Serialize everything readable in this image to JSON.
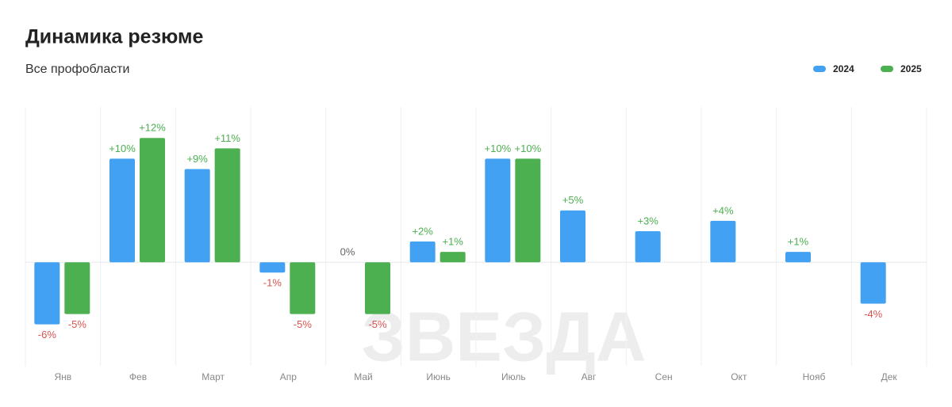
{
  "chart_data": {
    "type": "bar",
    "title": "Динамика резюме",
    "subtitle": "Все профобласти",
    "watermark": "ЗВЕЗДА",
    "categories": [
      "Янв",
      "Фев",
      "Март",
      "Апр",
      "Май",
      "Июнь",
      "Июль",
      "Авг",
      "Сен",
      "Окт",
      "Нояб",
      "Дек"
    ],
    "series": [
      {
        "name": "2024",
        "color": "#42a1f2",
        "values": [
          -6,
          10,
          9,
          -1,
          0,
          2,
          10,
          5,
          3,
          4,
          1,
          -4
        ],
        "value_labels": [
          "-6%",
          "+10%",
          "+9%",
          "-1%",
          "0%",
          "+2%",
          "+10%",
          "+5%",
          "+3%",
          "+4%",
          "+1%",
          "-4%"
        ]
      },
      {
        "name": "2025",
        "color": "#4caf50",
        "values": [
          -5,
          12,
          11,
          -5,
          -5,
          1,
          10,
          null,
          null,
          null,
          null,
          null
        ],
        "value_labels": [
          "-5%",
          "+12%",
          "+11%",
          "-5%",
          "-5%",
          "+1%",
          "+10%",
          null,
          null,
          null,
          null,
          null
        ]
      }
    ],
    "ylim": [
      -10,
      15
    ]
  }
}
